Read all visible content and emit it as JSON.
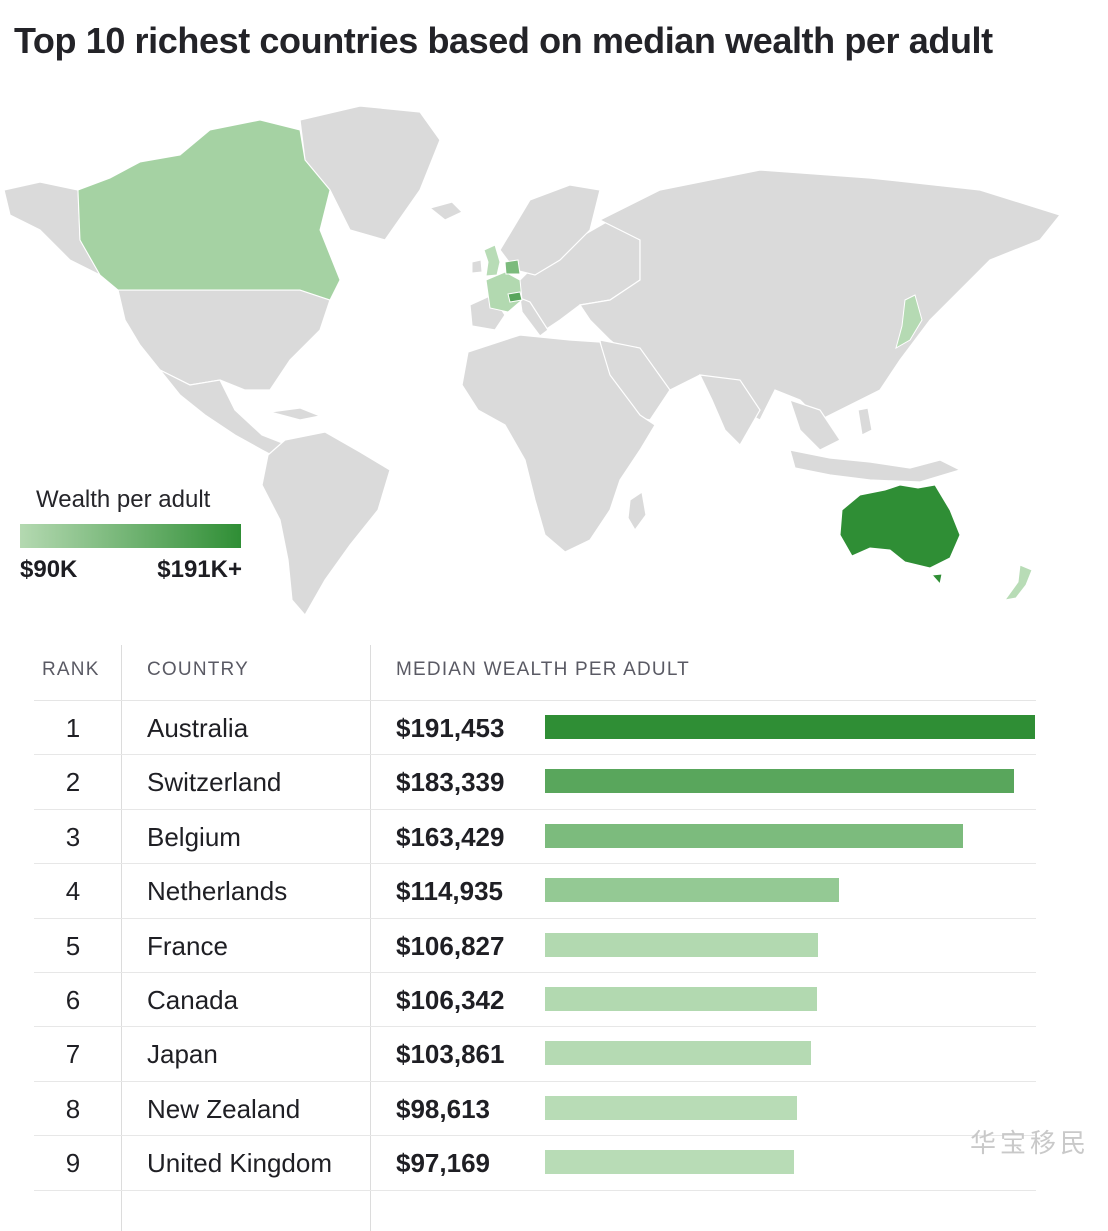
{
  "title": "Top 10 richest countries based on median wealth per adult",
  "legend": {
    "title": "Wealth per adult",
    "min_label": "$90K",
    "max_label": "$191K+",
    "color_low": "#b4d9b1",
    "color_high": "#2f8e35"
  },
  "map": {
    "highlighted_countries": [
      "Australia",
      "Switzerland",
      "Belgium",
      "Netherlands",
      "France",
      "Canada",
      "Japan",
      "New Zealand",
      "United Kingdom"
    ],
    "base_land_color": "#dadada"
  },
  "table": {
    "headers": {
      "rank": "RANK",
      "country": "COUNTRY",
      "wealth": "MEDIAN WEALTH PER ADULT"
    }
  },
  "chart_data": {
    "type": "bar",
    "categories": [
      "Australia",
      "Switzerland",
      "Belgium",
      "Netherlands",
      "France",
      "Canada",
      "Japan",
      "New Zealand",
      "United Kingdom"
    ],
    "ranks": [
      "1",
      "2",
      "3",
      "4",
      "5",
      "6",
      "7",
      "8",
      "9"
    ],
    "value_labels": [
      "$191,453",
      "$183,339",
      "$163,429",
      "$114,935",
      "$106,827",
      "$106,342",
      "$103,861",
      "$98,613",
      "$97,169"
    ],
    "values": [
      191453,
      183339,
      163429,
      114935,
      106827,
      106342,
      103861,
      98613,
      97169
    ],
    "bar_colors": [
      "#2f8e35",
      "#59a65c",
      "#7cbb7d",
      "#94c994",
      "#b2d9b0",
      "#b2d9b0",
      "#b5dab3",
      "#b8dcb6",
      "#b8dcb6"
    ],
    "xlabel": "",
    "ylabel": "",
    "xlim": [
      0,
      191453
    ]
  }
}
